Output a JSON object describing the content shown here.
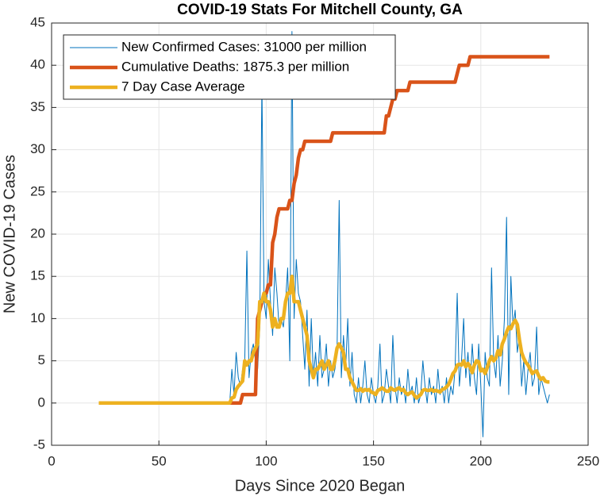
{
  "chart_data": {
    "type": "line",
    "title": "COVID-19 Stats For Mitchell County, GA",
    "xlabel": "Days Since 2020 Began",
    "ylabel": "New COVID-19 Cases",
    "grid": true,
    "legend": "northwest",
    "xlim": [
      0,
      250
    ],
    "xticks": [
      0,
      50,
      100,
      150,
      200,
      250
    ],
    "ylim": [
      -5,
      45
    ],
    "yticks": [
      -5,
      0,
      5,
      10,
      15,
      20,
      25,
      30,
      35,
      40,
      45
    ],
    "x": [
      22,
      23,
      24,
      25,
      26,
      27,
      28,
      29,
      30,
      31,
      32,
      33,
      34,
      35,
      36,
      37,
      38,
      39,
      40,
      41,
      42,
      43,
      44,
      45,
      46,
      47,
      48,
      49,
      50,
      51,
      52,
      53,
      54,
      55,
      56,
      57,
      58,
      59,
      60,
      61,
      62,
      63,
      64,
      65,
      66,
      67,
      68,
      69,
      70,
      71,
      72,
      73,
      74,
      75,
      76,
      77,
      78,
      79,
      80,
      81,
      82,
      83,
      84,
      85,
      86,
      87,
      88,
      89,
      90,
      91,
      92,
      93,
      94,
      95,
      96,
      97,
      98,
      99,
      100,
      101,
      102,
      103,
      104,
      105,
      106,
      107,
      108,
      109,
      110,
      111,
      112,
      113,
      114,
      115,
      116,
      117,
      118,
      119,
      120,
      121,
      122,
      123,
      124,
      125,
      126,
      127,
      128,
      129,
      130,
      131,
      132,
      133,
      134,
      135,
      136,
      137,
      138,
      139,
      140,
      141,
      142,
      143,
      144,
      145,
      146,
      147,
      148,
      149,
      150,
      151,
      152,
      153,
      154,
      155,
      156,
      157,
      158,
      159,
      160,
      161,
      162,
      163,
      164,
      165,
      166,
      167,
      168,
      169,
      170,
      171,
      172,
      173,
      174,
      175,
      176,
      177,
      178,
      179,
      180,
      181,
      182,
      183,
      184,
      185,
      186,
      187,
      188,
      189,
      190,
      191,
      192,
      193,
      194,
      195,
      196,
      197,
      198,
      199,
      200,
      201,
      202,
      203,
      204,
      205,
      206,
      207,
      208,
      209,
      210,
      211,
      212,
      213,
      214,
      215,
      216,
      217,
      218,
      219,
      220,
      221,
      222,
      223,
      224,
      225,
      226,
      227,
      228,
      229,
      230,
      231,
      232
    ],
    "series": [
      {
        "name": "New Confirmed Cases: 31000 per million",
        "color": "#0072BD",
        "width": 1,
        "values": [
          0,
          0,
          0,
          0,
          0,
          0,
          0,
          0,
          0,
          0,
          0,
          0,
          0,
          0,
          0,
          0,
          0,
          0,
          0,
          0,
          0,
          0,
          0,
          0,
          0,
          0,
          0,
          0,
          0,
          0,
          0,
          0,
          0,
          0,
          0,
          0,
          0,
          0,
          0,
          0,
          0,
          0,
          0,
          0,
          0,
          0,
          0,
          0,
          0,
          0,
          0,
          0,
          0,
          0,
          0,
          0,
          0,
          0,
          0,
          0,
          0,
          0,
          4,
          1,
          6,
          3,
          2,
          4,
          5,
          18,
          3,
          6,
          7,
          5,
          4,
          9,
          38,
          12,
          10,
          17,
          12,
          8,
          16,
          13,
          9,
          10,
          9,
          12,
          16,
          5,
          44,
          10,
          17,
          13,
          12,
          8,
          4,
          11,
          2,
          10,
          3,
          6,
          2,
          8,
          3,
          4,
          7,
          2,
          5,
          3,
          4,
          6,
          24,
          3,
          8,
          4,
          10,
          2,
          6,
          1,
          0,
          3,
          0,
          2,
          5,
          1,
          0,
          3,
          1,
          0,
          2,
          7,
          0,
          1,
          4,
          2,
          0,
          8,
          2,
          0,
          3,
          1,
          2,
          0,
          4,
          1,
          2,
          0,
          3,
          0,
          1,
          5,
          2,
          0,
          3,
          1,
          2,
          0,
          4,
          1,
          2,
          0,
          3,
          0,
          2,
          1,
          4,
          13,
          2,
          5,
          10,
          3,
          6,
          2,
          7,
          3,
          1,
          7,
          2,
          -4,
          6,
          3,
          2,
          16,
          5,
          3,
          8,
          2,
          5,
          10,
          22,
          1,
          15,
          9,
          11,
          6,
          8,
          2,
          5,
          1,
          4,
          6,
          2,
          3,
          9,
          1,
          3,
          2,
          1,
          0,
          1
        ]
      },
      {
        "name": "Cumulative Deaths: 1875.3 per million",
        "color": "#D95319",
        "width": 4.5,
        "values": [
          0,
          0,
          0,
          0,
          0,
          0,
          0,
          0,
          0,
          0,
          0,
          0,
          0,
          0,
          0,
          0,
          0,
          0,
          0,
          0,
          0,
          0,
          0,
          0,
          0,
          0,
          0,
          0,
          0,
          0,
          0,
          0,
          0,
          0,
          0,
          0,
          0,
          0,
          0,
          0,
          0,
          0,
          0,
          0,
          0,
          0,
          0,
          0,
          0,
          0,
          0,
          0,
          0,
          0,
          0,
          0,
          0,
          0,
          0,
          0,
          0,
          0,
          0,
          0,
          0,
          0,
          0,
          1,
          1,
          1,
          1,
          1,
          1,
          1,
          10,
          11,
          12,
          13,
          13,
          14,
          14,
          19,
          20,
          22,
          23,
          23,
          23,
          23,
          23,
          24,
          24,
          26,
          27,
          29,
          30,
          30,
          31,
          31,
          31,
          31,
          31,
          31,
          31,
          31,
          31,
          31,
          31,
          31,
          31,
          32,
          32,
          32,
          32,
          32,
          32,
          32,
          32,
          32,
          32,
          32,
          32,
          32,
          32,
          32,
          32,
          32,
          32,
          32,
          32,
          32,
          32,
          32,
          32,
          32,
          34,
          34,
          35,
          36,
          36,
          37,
          37,
          37,
          37,
          37,
          37,
          38,
          38,
          38,
          38,
          38,
          38,
          38,
          38,
          38,
          38,
          38,
          38,
          38,
          38,
          38,
          38,
          38,
          38,
          38,
          38,
          38,
          38,
          39,
          40,
          40,
          40,
          40,
          40,
          41,
          41,
          41,
          41,
          41,
          41,
          41,
          41,
          41,
          41,
          41,
          41,
          41,
          41,
          41,
          41,
          41,
          41,
          41,
          41,
          41,
          41,
          41,
          41,
          41,
          41,
          41,
          41,
          41,
          41,
          41,
          41,
          41,
          41,
          41,
          41,
          41,
          41
        ]
      },
      {
        "name": "7 Day Case Average",
        "color": "#EDB120",
        "width": 4.5,
        "values": [
          0,
          0,
          0,
          0,
          0,
          0,
          0,
          0,
          0,
          0,
          0,
          0,
          0,
          0,
          0,
          0,
          0,
          0,
          0,
          0,
          0,
          0,
          0,
          0,
          0,
          0,
          0,
          0,
          0,
          0,
          0,
          0,
          0,
          0,
          0,
          0,
          0,
          0,
          0,
          0,
          0,
          0,
          0,
          0,
          0,
          0,
          0,
          0,
          0,
          0,
          0,
          0,
          0,
          0,
          0,
          0,
          0,
          0,
          0,
          0,
          0,
          0,
          0.6,
          0.7,
          1.6,
          2,
          2.3,
          2.6,
          5,
          4.5,
          5,
          5,
          6,
          6.5,
          7,
          12,
          12,
          13,
          12,
          12,
          11,
          9,
          10,
          9,
          9,
          10,
          10,
          12,
          13,
          13,
          15,
          12,
          12,
          12,
          11,
          10,
          9,
          8,
          5,
          4,
          3,
          4,
          4,
          4.5,
          5,
          4,
          4.5,
          5,
          4,
          4,
          5,
          6.5,
          7,
          6.5,
          6,
          4,
          4,
          3,
          2.5,
          2,
          1.5,
          1.5,
          1.7,
          1.4,
          1.6,
          1.5,
          1.6,
          1.3,
          1.2,
          1,
          1.5,
          1.6,
          1.8,
          1.6,
          1.4,
          1.4,
          1.8,
          1.6,
          1.5,
          1.7,
          1.8,
          1.5,
          1.6,
          1.2,
          1,
          1.2,
          1.3,
          0.9,
          0.6,
          0.8,
          1,
          1.5,
          1.6,
          1.5,
          1.5,
          1.6,
          1.4,
          1.5,
          1.4,
          1.3,
          1.6,
          1.7,
          1.9,
          2.2,
          2.8,
          3.5,
          3.8,
          4.5,
          4.6,
          4.5,
          5,
          4.3,
          4.7,
          4.3,
          3.6,
          4.5,
          5,
          4.9,
          3.8,
          4,
          3.5,
          4.2,
          5,
          5.5,
          5,
          5.3,
          6.2,
          5.7,
          7,
          7.6,
          8.4,
          9,
          8.8,
          9.4,
          9.8,
          9.3,
          7.5,
          6,
          5.3,
          4.8,
          4.5,
          4,
          3.5,
          3.7,
          3.8,
          3.2,
          2.8,
          3,
          2.6,
          2.5,
          2.5
        ]
      }
    ]
  }
}
